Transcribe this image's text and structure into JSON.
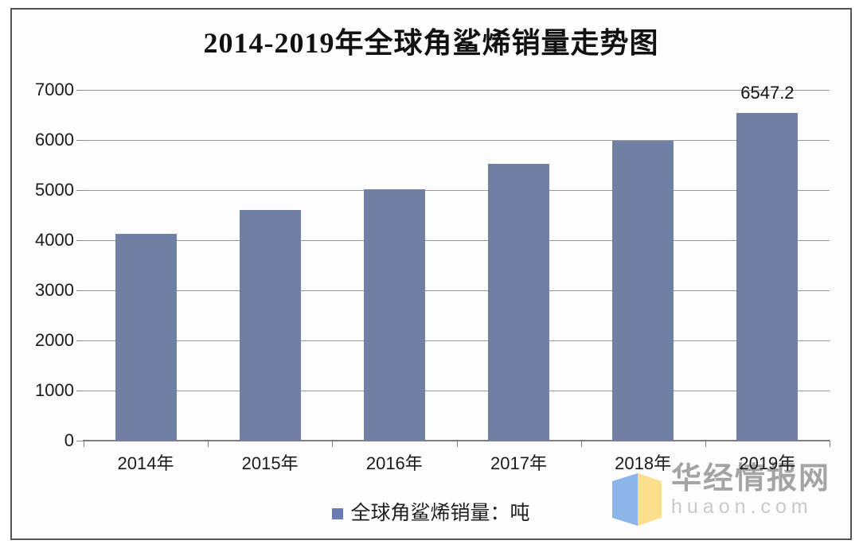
{
  "title": "2014-2019年全球角鲨烯销量走势图",
  "chart_data": {
    "type": "bar",
    "title": "2014-2019年全球角鲨烯销量走势图",
    "categories": [
      "2014年",
      "2015年",
      "2016年",
      "2017年",
      "2018年",
      "2019年"
    ],
    "values": [
      4130,
      4600,
      5020,
      5520,
      5990,
      6547.2
    ],
    "series_name": "全球角鲨烯销量：吨",
    "xlabel": "",
    "ylabel": "",
    "ylim": [
      0,
      7000
    ],
    "ytick_interval": 1000,
    "yticks_top_to_bottom": [
      "7000",
      "6000",
      "5000",
      "4000",
      "3000",
      "2000",
      "1000",
      "0"
    ],
    "data_label": {
      "category": "2019年",
      "index": 5,
      "text": "6547.2"
    },
    "bar_color": "#7080a4",
    "grid": true,
    "legend_position": "bottom"
  },
  "legend": {
    "label": "全球角鲨烯销量：吨",
    "marker_color": "#6b7cb4"
  },
  "watermark": {
    "brand": "华经情报网",
    "domain": "huaon.com",
    "logo_colors": {
      "blue": "#8eb5e9",
      "yellow": "#fbdf8e"
    }
  },
  "colors": {
    "bar": "#7080a4",
    "gridline": "#9a9a9a",
    "axis": "#7d7d7d",
    "frame_border": "#545454",
    "background": "#fdfdfd",
    "title_text": "#111111",
    "tick_text": "#1a1a1a",
    "watermark_brand_text": "#a4a4a4",
    "watermark_domain_text": "#c9c9c9"
  }
}
